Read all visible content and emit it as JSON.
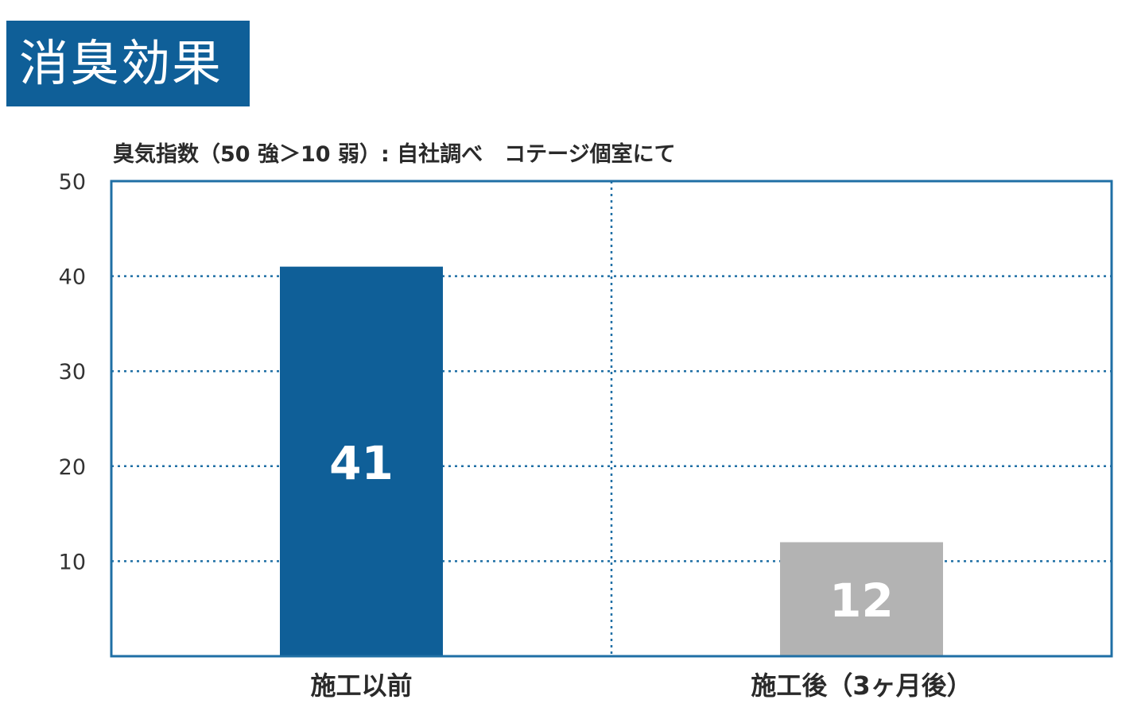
{
  "header": {
    "title": "消臭効果"
  },
  "chart_data": {
    "type": "bar",
    "subtitle": "臭気指数（50 強＞10 弱）: 自社調べ　コテージ個室にて",
    "categories": [
      "施工以前",
      "施工後（3ヶ月後）"
    ],
    "values": [
      41,
      12
    ],
    "data_labels": [
      "41",
      "12"
    ],
    "ylim": [
      0,
      50
    ],
    "yticks": [
      10,
      20,
      30,
      40,
      50
    ],
    "ytick_labels": [
      "10",
      "20",
      "30",
      "40",
      "50"
    ],
    "grid": true,
    "bar_colors": [
      "#0f5f98",
      "#b3b3b3"
    ],
    "frame_color": "#1f6fa5",
    "grid_color": "#1f6fa5"
  }
}
